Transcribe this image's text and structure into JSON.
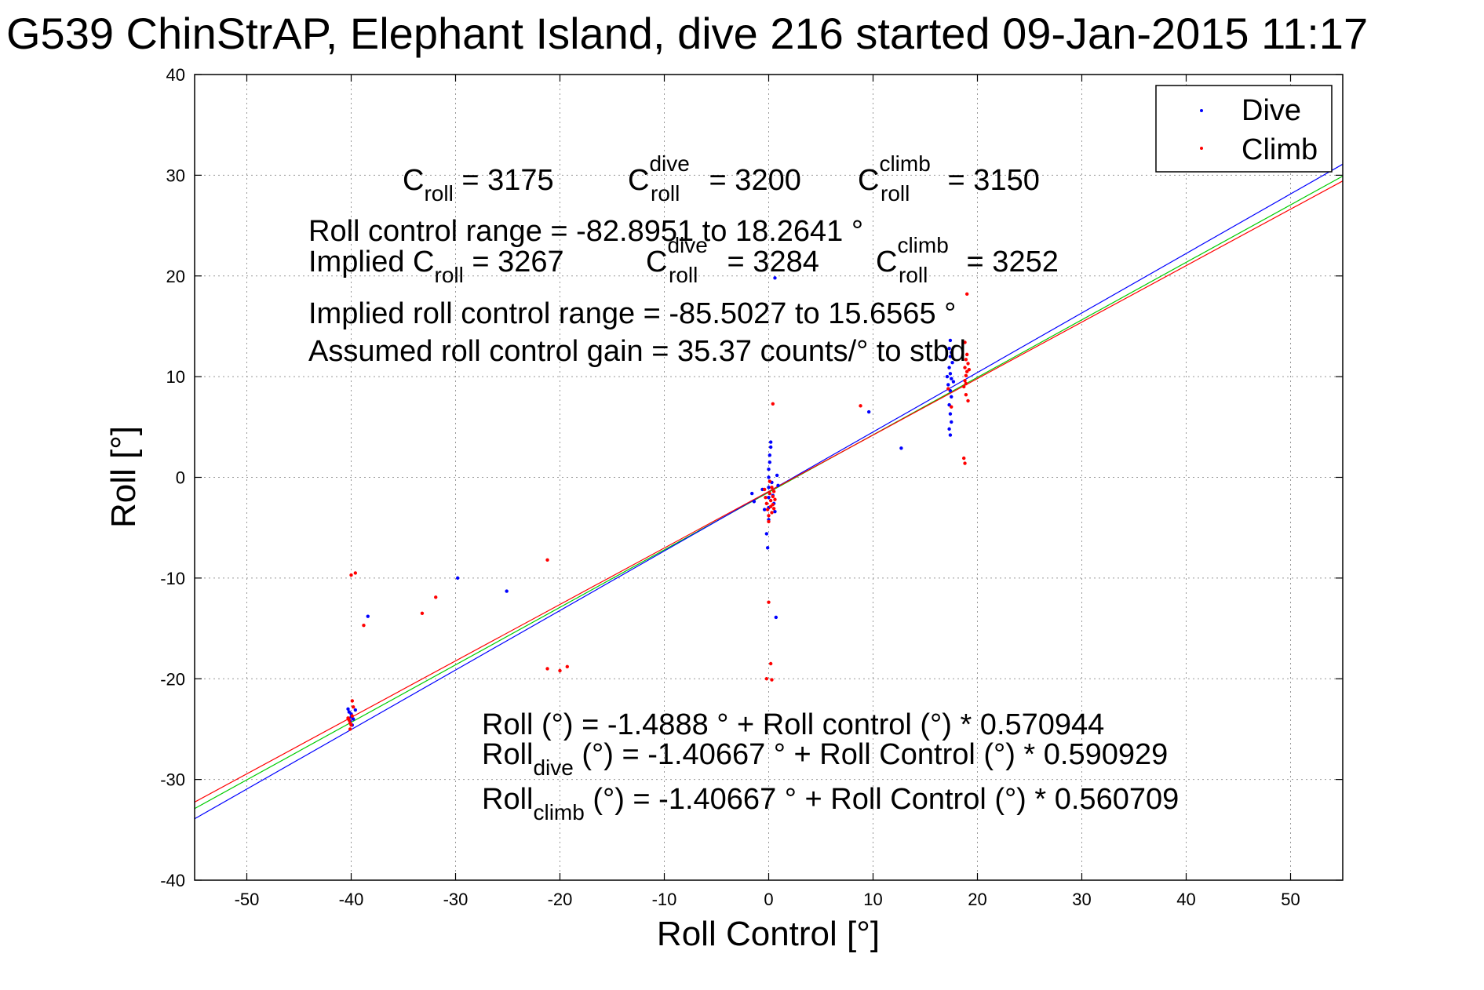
{
  "chart_data": {
    "type": "scatter",
    "title": "G539 ChinStrAP, Elephant Island, dive 216 started 09-Jan-2015 11:17",
    "xlabel": "Roll Control [°]",
    "ylabel": "Roll [°]",
    "xlim": [
      -55,
      55
    ],
    "ylim": [
      -40,
      40
    ],
    "xticks": [
      -50,
      -40,
      -30,
      -20,
      -10,
      0,
      10,
      20,
      30,
      40,
      50
    ],
    "yticks": [
      -40,
      -30,
      -20,
      -10,
      0,
      10,
      20,
      30,
      40
    ],
    "grid": true,
    "legend": {
      "placement": "top-right",
      "entries": [
        {
          "label": "Dive",
          "color": "#0000ff"
        },
        {
          "label": "Climb",
          "color": "#ff0000"
        }
      ]
    },
    "series": [
      {
        "name": "Dive",
        "color": "#0000ff",
        "points": [
          [
            -40.2,
            -23.3
          ],
          [
            -40.0,
            -23.8
          ],
          [
            -40.1,
            -24.2
          ],
          [
            -39.9,
            -24.6
          ],
          [
            -40.3,
            -23.0
          ],
          [
            -39.6,
            -23.1
          ],
          [
            -39.8,
            -24.0
          ],
          [
            -40.0,
            -23.5
          ],
          [
            -38.4,
            -13.8
          ],
          [
            -29.8,
            -10.0
          ],
          [
            -25.1,
            -11.3
          ],
          [
            -1.6,
            -1.6
          ],
          [
            -1.4,
            -2.4
          ],
          [
            -0.6,
            -1.2
          ],
          [
            -0.4,
            -3.2
          ],
          [
            -0.2,
            -5.6
          ],
          [
            -0.1,
            -7.0
          ],
          [
            0.0,
            -4.2
          ],
          [
            0.0,
            -3.0
          ],
          [
            0.0,
            -2.0
          ],
          [
            0.0,
            -1.0
          ],
          [
            0.0,
            0.0
          ],
          [
            0.0,
            0.8
          ],
          [
            0.1,
            1.5
          ],
          [
            0.1,
            2.2
          ],
          [
            0.2,
            3.0
          ],
          [
            0.2,
            3.5
          ],
          [
            0.3,
            -0.5
          ],
          [
            0.4,
            -1.8
          ],
          [
            0.5,
            -2.6
          ],
          [
            0.6,
            -3.4
          ],
          [
            0.7,
            -13.9
          ],
          [
            0.8,
            0.2
          ],
          [
            0.9,
            -0.8
          ],
          [
            0.6,
            19.8
          ],
          [
            9.6,
            6.5
          ],
          [
            12.7,
            2.9
          ],
          [
            17.4,
            4.2
          ],
          [
            17.3,
            4.8
          ],
          [
            17.5,
            5.5
          ],
          [
            17.4,
            6.3
          ],
          [
            17.3,
            7.2
          ],
          [
            17.5,
            8.0
          ],
          [
            17.4,
            8.6
          ],
          [
            17.2,
            9.2
          ],
          [
            17.5,
            9.8
          ],
          [
            17.4,
            10.3
          ],
          [
            17.3,
            10.9
          ],
          [
            17.6,
            11.4
          ],
          [
            17.4,
            12.0
          ],
          [
            17.5,
            12.4
          ],
          [
            17.3,
            12.8
          ],
          [
            17.4,
            13.6
          ],
          [
            17.7,
            9.5
          ],
          [
            17.1,
            10.0
          ]
        ]
      },
      {
        "name": "Climb",
        "color": "#ff0000",
        "points": [
          [
            -40.2,
            -24.1
          ],
          [
            -40.0,
            -24.6
          ],
          [
            -39.9,
            -23.7
          ],
          [
            -40.3,
            -23.9
          ],
          [
            -40.1,
            -25.0
          ],
          [
            -39.8,
            -22.8
          ],
          [
            -39.9,
            -22.2
          ],
          [
            -40.1,
            -24.4
          ],
          [
            -40.0,
            -9.7
          ],
          [
            -39.6,
            -9.5
          ],
          [
            -38.8,
            -14.7
          ],
          [
            -33.2,
            -13.5
          ],
          [
            -31.9,
            -11.9
          ],
          [
            -21.2,
            -8.2
          ],
          [
            -21.2,
            -19.0
          ],
          [
            -20.0,
            -19.2
          ],
          [
            -19.3,
            -18.8
          ],
          [
            -0.4,
            -1.2
          ],
          [
            -0.3,
            -2.0
          ],
          [
            -0.2,
            -2.6
          ],
          [
            -0.1,
            -3.2
          ],
          [
            0.0,
            -3.8
          ],
          [
            0.0,
            -4.4
          ],
          [
            0.1,
            -0.4
          ],
          [
            0.1,
            -1.6
          ],
          [
            0.2,
            -2.3
          ],
          [
            0.2,
            -2.9
          ],
          [
            0.3,
            -3.5
          ],
          [
            0.3,
            -1.0
          ],
          [
            0.4,
            -1.9
          ],
          [
            0.4,
            -2.7
          ],
          [
            0.5,
            -3.1
          ],
          [
            0.5,
            -1.4
          ],
          [
            0.6,
            -2.2
          ],
          [
            0.0,
            -12.4
          ],
          [
            0.2,
            -18.5
          ],
          [
            -0.2,
            -20.0
          ],
          [
            0.3,
            -20.1
          ],
          [
            0.4,
            7.3
          ],
          [
            8.8,
            7.1
          ],
          [
            17.5,
            7.0
          ],
          [
            17.2,
            8.8
          ],
          [
            18.7,
            9.0
          ],
          [
            18.8,
            9.6
          ],
          [
            18.9,
            10.1
          ],
          [
            19.0,
            10.5
          ],
          [
            18.8,
            10.9
          ],
          [
            19.1,
            11.3
          ],
          [
            18.9,
            11.7
          ],
          [
            19.0,
            12.2
          ],
          [
            18.8,
            13.4
          ],
          [
            19.0,
            18.2
          ],
          [
            18.9,
            8.2
          ],
          [
            19.1,
            7.6
          ],
          [
            18.7,
            1.9
          ],
          [
            18.8,
            1.4
          ],
          [
            19.2,
            10.7
          ],
          [
            18.9,
            9.3
          ]
        ]
      }
    ],
    "fit_lines": [
      {
        "name": "Roll fit",
        "color": "#00cc00",
        "intercept": -1.4888,
        "slope": 0.570944
      },
      {
        "name": "Roll dive fit",
        "color": "#0000ff",
        "intercept": -1.40667,
        "slope": 0.590929
      },
      {
        "name": "Roll climb fit",
        "color": "#ff0000",
        "intercept": -1.40667,
        "slope": 0.560709
      }
    ],
    "annotations": {
      "c_roll": {
        "label": "C",
        "sub": "roll",
        "value": " = 3175"
      },
      "c_roll_dive": {
        "label": "C",
        "sup": "dive",
        "sub": "roll",
        "value": " = 3200"
      },
      "c_roll_climb": {
        "label": "C",
        "sup": "climb",
        "sub": "roll",
        "value": " = 3150"
      },
      "roll_control_range": "Roll control range = -82.8951 to 18.2641 °",
      "implied_prefix": "Implied C",
      "implied_sub": "roll",
      "implied_value": " = 3267",
      "implied_dive": {
        "label": "C",
        "sup": "dive",
        "sub": "roll",
        "value": " = 3284"
      },
      "implied_climb": {
        "label": "C",
        "sup": "climb",
        "sub": "roll",
        "value": " = 3252"
      },
      "implied_range": "Implied roll control range = -85.5027 to 15.6565 °",
      "assumed_gain": "Assumed roll control gain = 35.37 counts/° to stbd",
      "eq_roll": "Roll (°) = -1.4888 ° + Roll control (°) * 0.570944",
      "eq_dive_prefix": "Roll",
      "eq_dive_sub": "dive",
      "eq_dive_rest": " (°) = -1.40667 ° + Roll Control (°) * 0.590929",
      "eq_climb_prefix": "Roll",
      "eq_climb_sub": "climb",
      "eq_climb_rest": " (°) = -1.40667 ° + Roll Control (°) * 0.560709"
    }
  }
}
